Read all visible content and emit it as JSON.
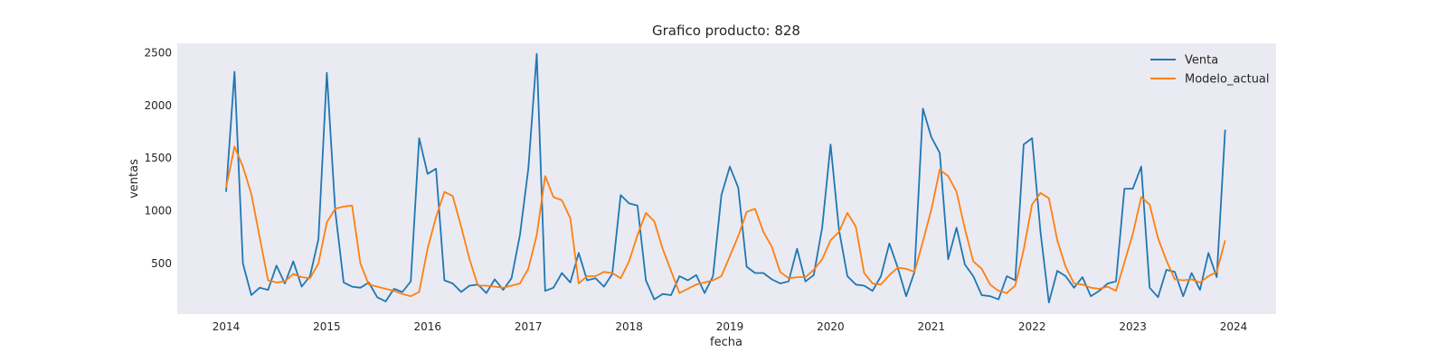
{
  "chart_data": {
    "type": "line",
    "title": "Grafico producto: 828",
    "xlabel": "fecha",
    "ylabel": "ventas",
    "x_start": "2014-01",
    "x_ticks": [
      "2014",
      "2015",
      "2016",
      "2017",
      "2018",
      "2019",
      "2020",
      "2021",
      "2022",
      "2023",
      "2024"
    ],
    "y_ticks": [
      500,
      1000,
      1500,
      2000,
      2500
    ],
    "ylim": [
      20,
      2590
    ],
    "grid": false,
    "legend_position": "top-right",
    "series": [
      {
        "name": "Venta",
        "color": "#1f77b4",
        "values": [
          1180,
          2320,
          500,
          200,
          270,
          250,
          480,
          310,
          520,
          280,
          380,
          730,
          2310,
          1000,
          320,
          280,
          270,
          320,
          180,
          140,
          260,
          230,
          330,
          1690,
          1350,
          1400,
          340,
          310,
          230,
          290,
          300,
          220,
          350,
          250,
          360,
          770,
          1400,
          2490,
          240,
          270,
          410,
          320,
          600,
          340,
          360,
          280,
          400,
          1150,
          1070,
          1050,
          340,
          160,
          210,
          200,
          380,
          340,
          390,
          220,
          380,
          1150,
          1420,
          1220,
          470,
          410,
          410,
          350,
          310,
          330,
          640,
          330,
          390,
          840,
          1630,
          820,
          380,
          300,
          290,
          240,
          380,
          690,
          460,
          190,
          420,
          1970,
          1700,
          1550,
          540,
          840,
          490,
          380,
          200,
          190,
          160,
          380,
          340,
          1630,
          1690,
          800,
          130,
          430,
          380,
          270,
          370,
          190,
          240,
          310,
          330,
          1210,
          1210,
          1420,
          270,
          180,
          440,
          420,
          190,
          410,
          250,
          600,
          370,
          1770
        ]
      },
      {
        "name": "Modelo_actual",
        "color": "#ff7f0e",
        "values": [
          1220,
          1610,
          1420,
          1160,
          750,
          340,
          320,
          330,
          400,
          370,
          360,
          500,
          890,
          1020,
          1040,
          1050,
          500,
          300,
          280,
          260,
          240,
          210,
          190,
          230,
          640,
          940,
          1180,
          1140,
          850,
          540,
          290,
          290,
          280,
          270,
          290,
          310,
          450,
          770,
          1330,
          1130,
          1100,
          930,
          310,
          380,
          380,
          420,
          410,
          360,
          520,
          770,
          980,
          900,
          640,
          430,
          220,
          260,
          300,
          320,
          340,
          380,
          570,
          760,
          990,
          1020,
          800,
          660,
          420,
          360,
          370,
          370,
          440,
          540,
          720,
          800,
          980,
          850,
          410,
          310,
          300,
          390,
          460,
          450,
          420,
          710,
          1010,
          1390,
          1330,
          1180,
          830,
          520,
          450,
          300,
          240,
          220,
          290,
          630,
          1060,
          1170,
          1120,
          720,
          470,
          310,
          300,
          270,
          260,
          280,
          240,
          510,
          780,
          1130,
          1060,
          740,
          530,
          350,
          340,
          350,
          320,
          380,
          420,
          720
        ]
      }
    ]
  }
}
